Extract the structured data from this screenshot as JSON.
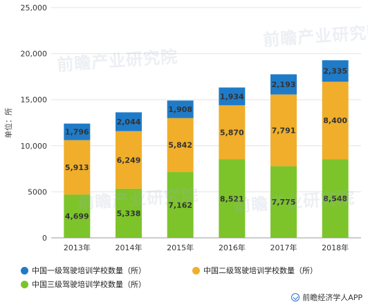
{
  "chart_data": {
    "type": "bar",
    "stacked": true,
    "categories": [
      "2013年",
      "2014年",
      "2015年",
      "2016年",
      "2017年",
      "2018年"
    ],
    "series": [
      {
        "name": "中国三级驾驶培训学校数量（所）",
        "color": "#7dc42b",
        "values": [
          4699,
          5338,
          7162,
          8521,
          7775,
          8548
        ],
        "labels": [
          "4,699",
          "5,338",
          "7,162",
          "8,521",
          "7,775",
          "8,548"
        ]
      },
      {
        "name": "中国二级驾驶培训学校数量（所）",
        "color": "#f0ae2a",
        "values": [
          5913,
          6249,
          5842,
          5870,
          7791,
          8400
        ],
        "labels": [
          "5,913",
          "6,249",
          "5,842",
          "5,870",
          "7,791",
          "8,400"
        ]
      },
      {
        "name": "中国一级驾驶培训学校数量（所）",
        "color": "#1f7bc8",
        "values": [
          1796,
          2044,
          1908,
          1934,
          2193,
          2335
        ],
        "labels": [
          "1,796",
          "2,044",
          "1,908",
          "1,934",
          "2,193",
          "2,335"
        ]
      }
    ],
    "ylabel": "单位：所",
    "ylim": [
      0,
      25000
    ],
    "yticks": [
      0,
      5000,
      10000,
      15000,
      20000,
      25000
    ],
    "ytick_labels": [
      "0",
      "5000",
      "10,000",
      "15,000",
      "20,000",
      "25,000"
    ],
    "grid": true,
    "legend_position": "bottom"
  },
  "watermark_text": "前瞻产业研究院",
  "footer_text": "前瞻经济学人APP",
  "colors": {
    "grid": "#e3e3e3",
    "axis": "#999999"
  }
}
